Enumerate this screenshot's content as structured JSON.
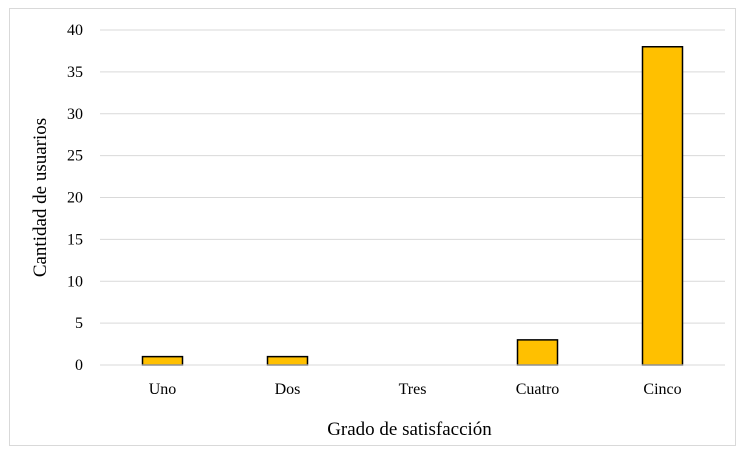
{
  "chart_data": {
    "type": "bar",
    "title": "",
    "xlabel": "Grado de satisfacción",
    "ylabel": "Cantidad de usuarios",
    "categories": [
      "Uno",
      "Dos",
      "Tres",
      "Cuatro",
      "Cinco"
    ],
    "values": [
      1,
      1,
      0,
      3,
      38
    ],
    "ylim": [
      0,
      40
    ],
    "yticks": [
      "0",
      "5",
      "10",
      "15",
      "20",
      "25",
      "30",
      "35",
      "40"
    ],
    "grid": true,
    "legend": "none",
    "bar_color": "#ffc000",
    "bar_edge_color": "#000000",
    "grid_color": "#d9d9d9"
  }
}
